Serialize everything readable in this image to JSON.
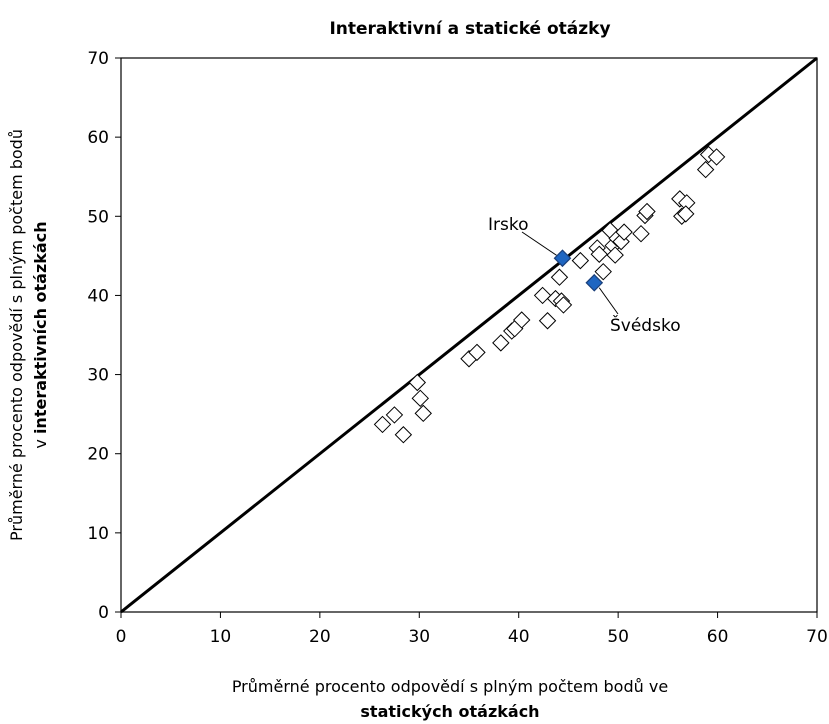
{
  "chart_data": {
    "type": "scatter",
    "title": "Interaktivní a statické otázky",
    "xlabel": "Průměrné procento odpovědí s plným počtem bodů ve",
    "xlabel_bold": "statických otázkách",
    "ylabel": "Průměrné procento odpovědí s plným počtem bodů",
    "ylabel_prefix": "v ",
    "ylabel_bold": "interaktivních otázkách",
    "xlim": [
      0,
      70
    ],
    "ylim": [
      0,
      70
    ],
    "xticks": [
      "0",
      "10",
      "20",
      "30",
      "40",
      "50",
      "60",
      "70"
    ],
    "yticks": [
      "0",
      "10",
      "20",
      "30",
      "40",
      "50",
      "60",
      "70"
    ],
    "reference_line": {
      "x": [
        0,
        70
      ],
      "y": [
        0,
        70
      ]
    },
    "series": [
      {
        "marker": "diamond-open",
        "color": "#000000",
        "points": [
          [
            26.3,
            23.7
          ],
          [
            27.5,
            24.9
          ],
          [
            28.4,
            22.4
          ],
          [
            29.8,
            29.0
          ],
          [
            30.1,
            27.0
          ],
          [
            30.4,
            25.1
          ],
          [
            35.0,
            32.0
          ],
          [
            35.8,
            32.8
          ],
          [
            38.2,
            34.0
          ],
          [
            39.3,
            35.5
          ],
          [
            39.6,
            35.8
          ],
          [
            40.3,
            36.9
          ],
          [
            42.4,
            40.0
          ],
          [
            42.9,
            36.8
          ],
          [
            43.7,
            39.6
          ],
          [
            44.1,
            42.3
          ],
          [
            44.3,
            39.3
          ],
          [
            44.5,
            38.8
          ],
          [
            46.2,
            44.4
          ],
          [
            47.9,
            46.0
          ],
          [
            48.1,
            45.2
          ],
          [
            48.5,
            43.0
          ],
          [
            49.2,
            48.2
          ],
          [
            49.5,
            46.3
          ],
          [
            49.7,
            45.1
          ],
          [
            49.9,
            47.2
          ],
          [
            50.3,
            46.8
          ],
          [
            50.6,
            48.0
          ],
          [
            52.3,
            47.8
          ],
          [
            52.7,
            50.1
          ],
          [
            52.9,
            50.6
          ],
          [
            56.2,
            52.2
          ],
          [
            56.4,
            50.0
          ],
          [
            56.9,
            51.7
          ],
          [
            56.8,
            50.3
          ],
          [
            58.8,
            55.9
          ],
          [
            59.1,
            57.8
          ],
          [
            59.9,
            57.5
          ]
        ]
      },
      {
        "marker": "diamond-filled",
        "color": "#1f66c1",
        "points": [
          [
            44.4,
            44.7
          ],
          [
            47.6,
            41.6
          ]
        ]
      }
    ],
    "annotations": [
      {
        "label": "Irsko",
        "x": 44.4,
        "y": 44.7
      },
      {
        "label": "Švédsko",
        "x": 47.6,
        "y": 41.6
      }
    ]
  }
}
